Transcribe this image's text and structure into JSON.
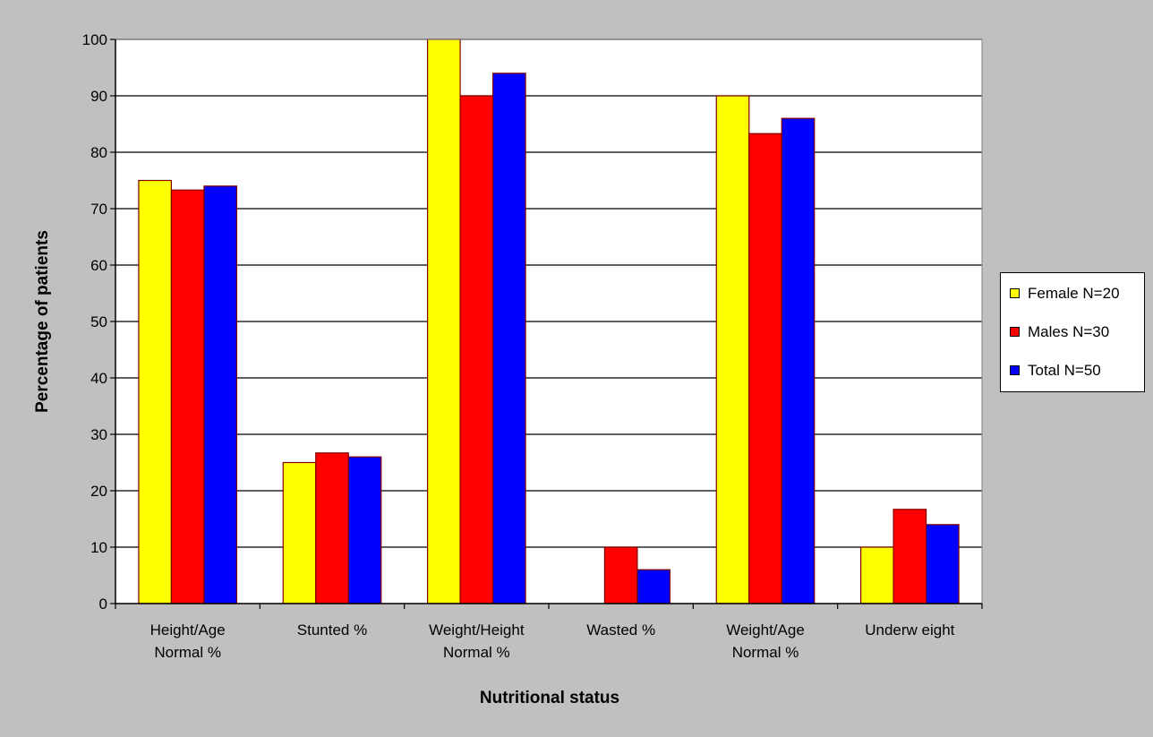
{
  "chart_data": {
    "type": "bar",
    "title": "",
    "xlabel": "Nutritional status",
    "ylabel": "Percentage of patients",
    "ylim": [
      0,
      100
    ],
    "yticks": [
      0,
      10,
      20,
      30,
      40,
      50,
      60,
      70,
      80,
      90,
      100
    ],
    "grid": true,
    "legend_position": "right",
    "categories": [
      [
        "Height/Age",
        "Normal %"
      ],
      [
        "Stunted %"
      ],
      [
        "Weight/Height",
        "Normal %"
      ],
      [
        "Wasted %"
      ],
      [
        "Weight/Age",
        "Normal %"
      ],
      [
        "Underw eight"
      ]
    ],
    "series": [
      {
        "name": "Female N=20",
        "color": "#ffff00",
        "values": [
          75,
          25,
          100,
          0,
          90,
          10
        ]
      },
      {
        "name": "Males N=30",
        "color": "#ff0000",
        "values": [
          73.3,
          26.7,
          90,
          10,
          83.3,
          16.7
        ]
      },
      {
        "name": "Total N=50",
        "color": "#0000ff",
        "values": [
          74,
          26,
          94,
          6,
          86,
          14
        ]
      }
    ],
    "colors": {
      "background": "#c0c0c0",
      "plot_area": "#ffffff",
      "bar_border": "#800000",
      "grid": "#000000"
    }
  }
}
